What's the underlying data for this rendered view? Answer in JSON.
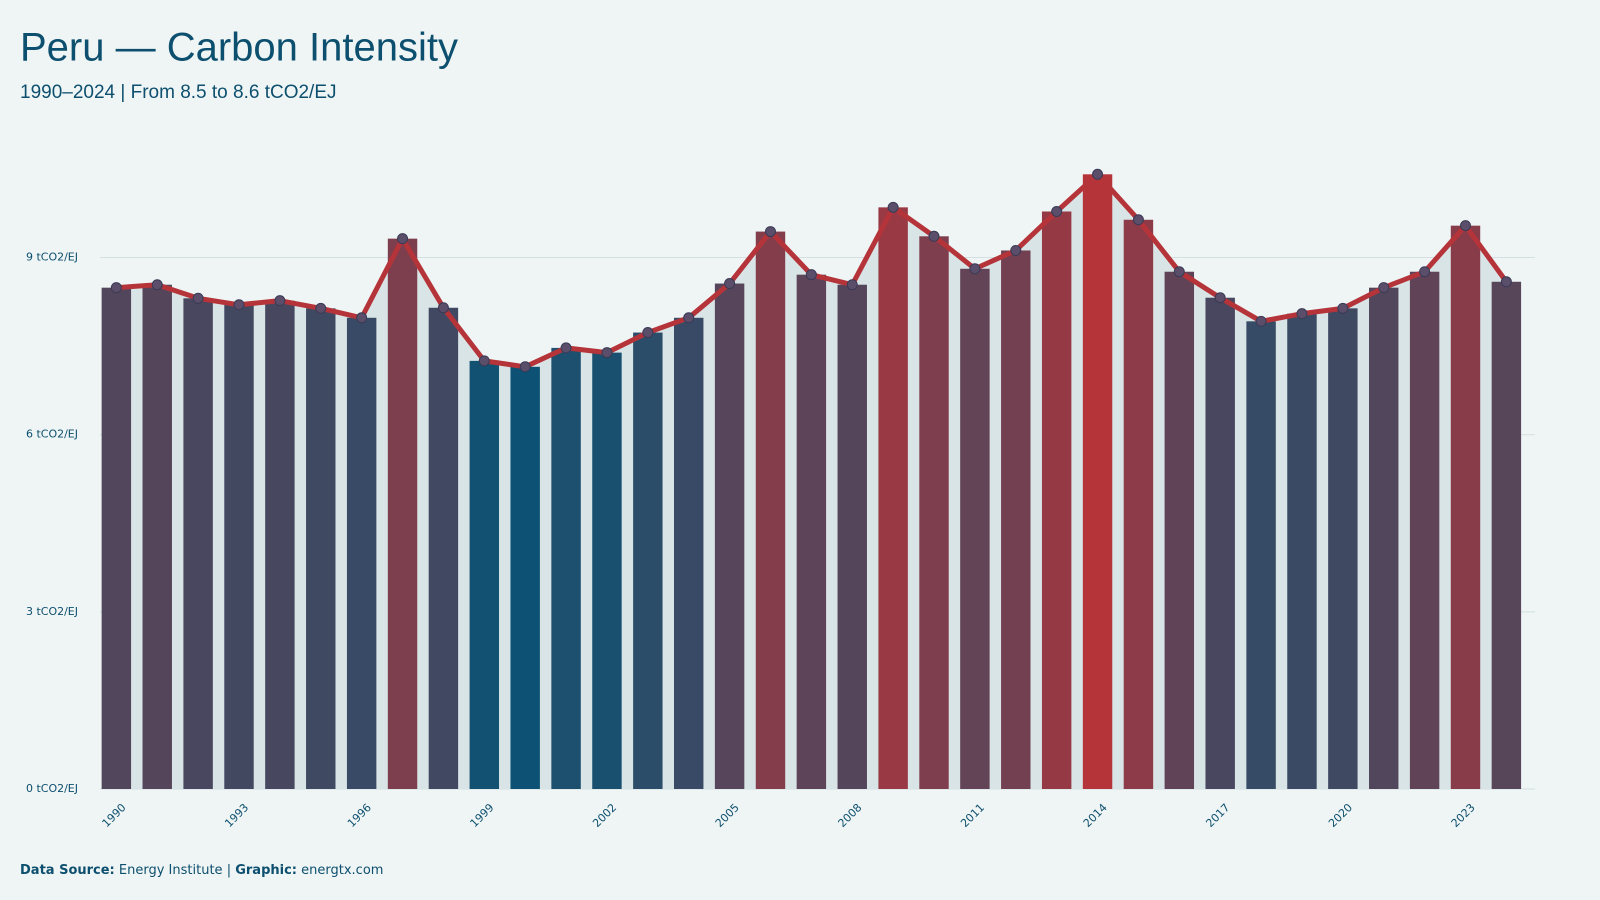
{
  "chart_data": {
    "type": "combo",
    "title": "Peru — Carbon Intensity",
    "subtitle": "1990–2024 | From 8.5 to 8.6 tCO2/EJ",
    "x": [
      1990,
      1991,
      1992,
      1993,
      1994,
      1995,
      1996,
      1997,
      1998,
      1999,
      2000,
      2001,
      2002,
      2003,
      2004,
      2005,
      2006,
      2007,
      2008,
      2009,
      2010,
      2011,
      2012,
      2013,
      2014,
      2015,
      2016,
      2017,
      2018,
      2019,
      2020,
      2021,
      2022,
      2023,
      2024
    ],
    "values": [
      8.49,
      8.54,
      8.31,
      8.2,
      8.27,
      8.14,
      7.98,
      9.32,
      8.15,
      7.25,
      7.15,
      7.47,
      7.39,
      7.73,
      7.98,
      8.56,
      9.44,
      8.71,
      8.54,
      9.85,
      9.36,
      8.81,
      9.12,
      9.78,
      10.41,
      9.64,
      8.76,
      8.32,
      7.92,
      8.05,
      8.14,
      8.49,
      8.76,
      9.54,
      8.59
    ],
    "xlim": [
      1989.6,
      2024.7
    ],
    "xticks": [
      1990,
      1993,
      1996,
      1999,
      2002,
      2005,
      2008,
      2011,
      2014,
      2017,
      2020,
      2023
    ],
    "ylim": [
      0,
      10.94
    ],
    "yticks": [
      {
        "value": 0,
        "label": "0 tCO2/EJ"
      },
      {
        "value": 3,
        "label": "3 tCO2/EJ"
      },
      {
        "value": 6,
        "label": "6 tCO2/EJ"
      },
      {
        "value": 9,
        "label": "9 tCO2/EJ"
      }
    ],
    "grid": true,
    "bar_colors": [
      "#0d5274",
      "#b5343a"
    ],
    "line_color": "#b5343a",
    "point_color": "#5a4e6a",
    "area_color": "#d9e4e6",
    "source_label": "Data Source:",
    "source": "Energy Institute",
    "separator": "|",
    "graphic_label": "Graphic:",
    "graphic": "energtx.com"
  }
}
